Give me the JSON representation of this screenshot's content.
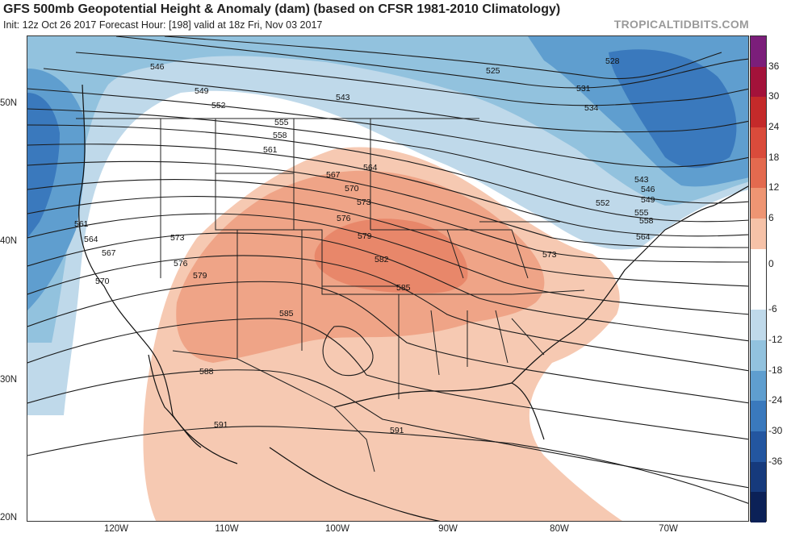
{
  "header": {
    "title": "GFS 500mb Geopotential Height & Anomaly (dam) (based on CFSR 1981-2010 Climatology)",
    "subtitle": "Init: 12z Oct 26 2017   Forecast Hour: [198]   valid at 18z Fri, Nov 03 2017",
    "credit": "TROPICALTIDBITS.COM"
  },
  "axes": {
    "lat_labels": [
      "50N",
      "40N",
      "30N",
      "20N"
    ],
    "lon_labels": [
      "120W",
      "110W",
      "100W",
      "90W",
      "80W",
      "70W"
    ]
  },
  "colorbar": {
    "ticks": [
      "36",
      "30",
      "24",
      "18",
      "12",
      "6",
      "0",
      "-6",
      "-12",
      "-18",
      "-24",
      "-30",
      "-36"
    ],
    "colors": [
      "#7b1e7a",
      "#a3123a",
      "#c42a2a",
      "#d94b3b",
      "#e36a4f",
      "#ee9573",
      "#f6c2a8",
      "#ffffff",
      "#ffffff",
      "#bfd9ea",
      "#92c2de",
      "#5f9ecf",
      "#3a79bd",
      "#2356a0",
      "#163a7c",
      "#0b2157"
    ]
  },
  "contour_labels": [
    {
      "id": "525",
      "text": "525"
    },
    {
      "id": "528",
      "text": "528"
    },
    {
      "id": "531",
      "text": "531"
    },
    {
      "id": "534",
      "text": "534"
    },
    {
      "id": "543a",
      "text": "543"
    },
    {
      "id": "543b",
      "text": "543"
    },
    {
      "id": "546a",
      "text": "546"
    },
    {
      "id": "546b",
      "text": "546"
    },
    {
      "id": "549a",
      "text": "549"
    },
    {
      "id": "549b",
      "text": "549"
    },
    {
      "id": "552a",
      "text": "552"
    },
    {
      "id": "552b",
      "text": "552"
    },
    {
      "id": "555a",
      "text": "555"
    },
    {
      "id": "555b",
      "text": "555"
    },
    {
      "id": "558a",
      "text": "558"
    },
    {
      "id": "558b",
      "text": "558"
    },
    {
      "id": "561a",
      "text": "561"
    },
    {
      "id": "561b",
      "text": "561"
    },
    {
      "id": "564a",
      "text": "564"
    },
    {
      "id": "564b",
      "text": "564"
    },
    {
      "id": "564c",
      "text": "564"
    },
    {
      "id": "567a",
      "text": "567"
    },
    {
      "id": "567b",
      "text": "567"
    },
    {
      "id": "570a",
      "text": "570"
    },
    {
      "id": "570b",
      "text": "570"
    },
    {
      "id": "573a",
      "text": "573"
    },
    {
      "id": "573b",
      "text": "573"
    },
    {
      "id": "573c",
      "text": "573"
    },
    {
      "id": "576a",
      "text": "576"
    },
    {
      "id": "576b",
      "text": "576"
    },
    {
      "id": "579a",
      "text": "579"
    },
    {
      "id": "579b",
      "text": "579"
    },
    {
      "id": "582",
      "text": "582"
    },
    {
      "id": "585a",
      "text": "585"
    },
    {
      "id": "585b",
      "text": "585"
    },
    {
      "id": "588",
      "text": "588"
    },
    {
      "id": "591a",
      "text": "591"
    },
    {
      "id": "591b",
      "text": "591"
    }
  ]
}
